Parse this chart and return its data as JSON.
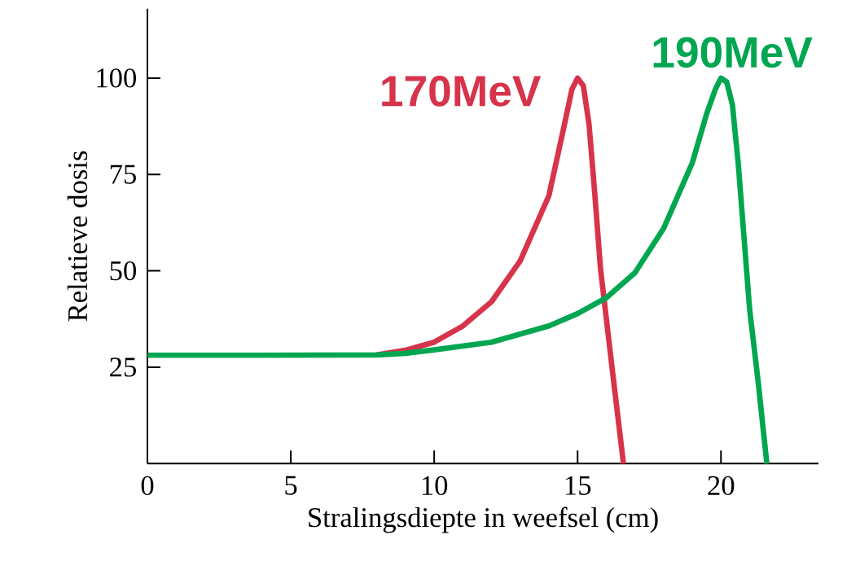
{
  "chart_data": {
    "type": "line",
    "xlabel": "Stralingsdiepte in weefsel (cm)",
    "ylabel": "Relatieve dosis",
    "xlim": [
      0,
      23.4
    ],
    "ylim": [
      0,
      118
    ],
    "xticks": [
      0,
      5,
      10,
      15,
      20
    ],
    "yticks": [
      25,
      50,
      75,
      100
    ],
    "grid": false,
    "legend": false,
    "marker": "none",
    "line_style": "solid",
    "series": [
      {
        "name": "170MeV",
        "color": "#d7334a",
        "x": [
          8,
          9,
          10,
          11,
          12,
          13,
          14,
          14.5,
          14.8,
          15,
          15.2,
          15.4,
          15.6,
          15.8,
          16.2,
          16.6
        ],
        "values": [
          28.2,
          29.4,
          31.5,
          35.7,
          42,
          52.6,
          69.5,
          86.5,
          97,
          100,
          98,
          88,
          70,
          50.5,
          25,
          0
        ]
      },
      {
        "name": "190MeV",
        "color": "#00a650",
        "x": [
          0,
          4,
          8,
          9,
          10,
          12,
          13,
          14,
          15,
          16,
          17,
          18,
          19,
          19.5,
          19.8,
          20,
          20.2,
          20.4,
          20.6,
          21,
          21.3,
          21.6
        ],
        "values": [
          28.1,
          28.1,
          28.2,
          28.6,
          29.5,
          31.5,
          33.6,
          35.7,
          38.9,
          43,
          49.5,
          61,
          78,
          90.7,
          97,
          100,
          99,
          93,
          78,
          40,
          21,
          0
        ]
      }
    ]
  }
}
